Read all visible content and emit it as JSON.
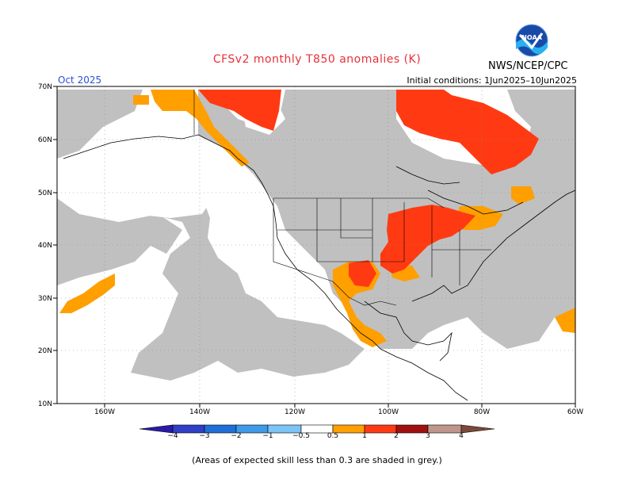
{
  "title": "CFSv2 monthly T850 anomalies (K)",
  "month": "Oct 2025",
  "initial_conditions": "Initial conditions: 1Jun2025–10Jun2025",
  "agency": "NWS/NCEP/CPC",
  "logo": {
    "text": "NOAA",
    "icon": "noaa-logo"
  },
  "footnote": "(Areas of expected skill less than 0.3 are shaded in grey.)",
  "map": {
    "lon_range": [
      -170,
      -60
    ],
    "lat_range": [
      10,
      70
    ],
    "lon_ticks": [
      "160W",
      "140W",
      "120W",
      "100W",
      "80W",
      "60W"
    ],
    "lat_ticks": [
      "70N",
      "60N",
      "50N",
      "40N",
      "30N",
      "20N",
      "10N"
    ],
    "grid": "dotted",
    "shading": {
      "low_skill": "#c0c0c0",
      "anom_0_5_to_1": "#ff9f00",
      "anom_1_to_2": "#ff3a12"
    }
  },
  "colorbar": {
    "labels": [
      "−4",
      "−3",
      "−2",
      "−1",
      "−0.5",
      "0.5",
      "1",
      "2",
      "3",
      "4"
    ],
    "colors": [
      "#2a1aa8",
      "#2f3fc8",
      "#1f6fd8",
      "#3f9ae8",
      "#7cc4f6",
      "#ffffff",
      "#ff9f00",
      "#ff3a12",
      "#e01010",
      "#a01010",
      "#c0968a",
      "#7a4a3a"
    ]
  }
}
